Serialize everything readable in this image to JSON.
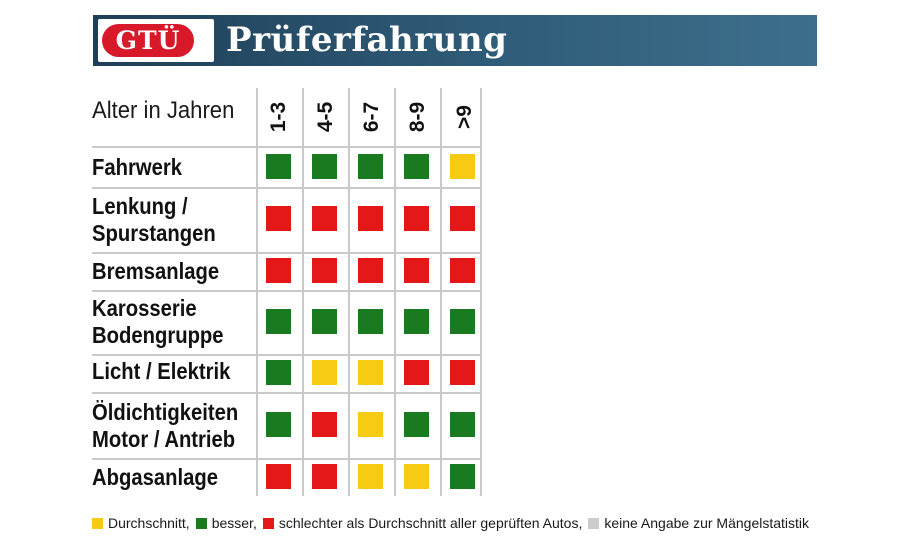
{
  "header": {
    "logo_text": "GTÜ",
    "title": "Prüferfahrung",
    "logo_color": "#d7192a",
    "banner_color": "#2a516b"
  },
  "columns": {
    "label": "Alter in Jahren",
    "groups": [
      "1-3",
      "4-5",
      "6-7",
      "8-9",
      ">9"
    ]
  },
  "colors": {
    "green": "#1a7a1f",
    "red": "#e41818",
    "yellow": "#f7cb14",
    "gray": "#cccccc"
  },
  "rows": [
    {
      "label_line1": "Fahrwerk",
      "label_line2": "",
      "ratings": [
        "green",
        "green",
        "green",
        "green",
        "yellow"
      ]
    },
    {
      "label_line1": "Lenkung /",
      "label_line2": "Spurstangen",
      "ratings": [
        "red",
        "red",
        "red",
        "red",
        "red"
      ]
    },
    {
      "label_line1": "Bremsanlage",
      "label_line2": "",
      "ratings": [
        "red",
        "red",
        "red",
        "red",
        "red"
      ]
    },
    {
      "label_line1": "Karosserie",
      "label_line2": "Bodengruppe",
      "ratings": [
        "green",
        "green",
        "green",
        "green",
        "green"
      ]
    },
    {
      "label_line1": "Licht / Elektrik",
      "label_line2": "",
      "ratings": [
        "green",
        "yellow",
        "yellow",
        "red",
        "red"
      ]
    },
    {
      "label_line1": "Öldichtigkeiten",
      "label_line2": "Motor / Antrieb",
      "ratings": [
        "green",
        "red",
        "yellow",
        "green",
        "green"
      ]
    },
    {
      "label_line1": "Abgasanlage",
      "label_line2": "",
      "ratings": [
        "red",
        "red",
        "yellow",
        "yellow",
        "green"
      ]
    }
  ],
  "legend": [
    {
      "color": "yellow",
      "text": "Durchschnitt,"
    },
    {
      "color": "green",
      "text": "besser,"
    },
    {
      "color": "red",
      "text": "schlechter als Durchschnitt aller geprüften Autos,"
    },
    {
      "color": "gray",
      "text": "keine Angabe zur Mängelstatistik"
    }
  ]
}
